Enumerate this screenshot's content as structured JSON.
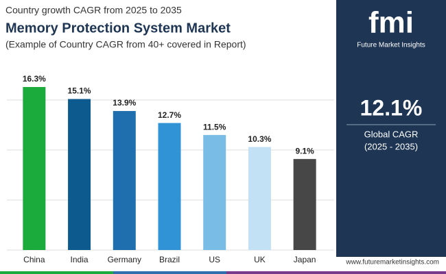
{
  "chart_data": {
    "type": "bar",
    "kicker": "Country growth CAGR from 2025 to 2035",
    "title": "Memory Protection System Market",
    "subtitle": "(Example of Country CAGR from 40+ covered in Report)",
    "categories": [
      "China",
      "India",
      "Germany",
      "Brazil",
      "US",
      "UK",
      "Japan"
    ],
    "values": [
      16.3,
      15.1,
      13.9,
      12.7,
      11.5,
      10.3,
      9.1
    ],
    "value_labels": [
      "16.3%",
      "15.1%",
      "13.9%",
      "12.7%",
      "11.5%",
      "10.3%",
      "9.1%"
    ],
    "colors": [
      "#1aab3c",
      "#0d5a8f",
      "#1f6fae",
      "#2f93d6",
      "#79bce6",
      "#c2e1f4",
      "#474747"
    ],
    "ylim": [
      0,
      17.5
    ],
    "yticks": [
      0,
      5,
      10,
      15
    ],
    "grid": true
  },
  "panel": {
    "logo": "fmi",
    "brand": "Future Market Insights",
    "value": "12.1%",
    "label": "Global CAGR",
    "period": "(2025 - 2035)"
  },
  "footer": {
    "url": "www.futuremarketinsights.com"
  }
}
